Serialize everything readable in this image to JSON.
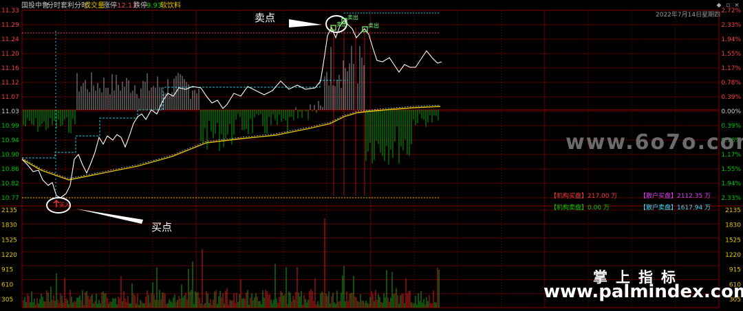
{
  "header": {
    "stock_name": "国投中鲁",
    "tab_intraday": "分时",
    "tab_arbitrage": "套利分时",
    "volume_label": "成交量",
    "limit_up_label": "涨停",
    "limit_up_value": "12.13",
    "limit_down_label": "跌停",
    "limit_down_value": "9.93",
    "sector": "软饮料",
    "date": "2022年7月14日星期四"
  },
  "price_axis": {
    "left_labels": [
      "11.33",
      "11.29",
      "11.24",
      "11.20",
      "11.16",
      "11.12",
      "11.07",
      "11.03",
      "10.99",
      "10.94",
      "10.90",
      "10.86",
      "10.82",
      "10.77"
    ],
    "right_labels": [
      "2.72%",
      "2.33%",
      "1.94%",
      "1.55%",
      "1.17%",
      "0.78%",
      "0.39%",
      "0.00%",
      "0.39%",
      "0.78%",
      "1.17%",
      "1.55%",
      "1.94%",
      "2.33%"
    ]
  },
  "volume_axis": {
    "labels": [
      "2135",
      "1830",
      "1525",
      "1220",
      "915",
      "610",
      "305"
    ]
  },
  "legend": {
    "inst_buy": "【机构买盘】217.00 万",
    "retail_buy": "【散户买盘】2112.35 万",
    "inst_sell": "【机构卖盘】0.00 万",
    "retail_sell": "【散户卖盘】1617.94 万"
  },
  "signals": {
    "buy": "买入",
    "sell": "卖出"
  },
  "annotations": {
    "sell_point": "卖点",
    "buy_point": "买点"
  },
  "watermarks": {
    "site1": "www.6o7o.com",
    "brand": "掌上指标",
    "site2": "www.palmindex.com"
  },
  "colors": {
    "up": "#ff3b3b",
    "down": "#00c800",
    "price_line": "#ffffff",
    "avg_line": "#e6c700",
    "grid": "#5a0000"
  }
}
